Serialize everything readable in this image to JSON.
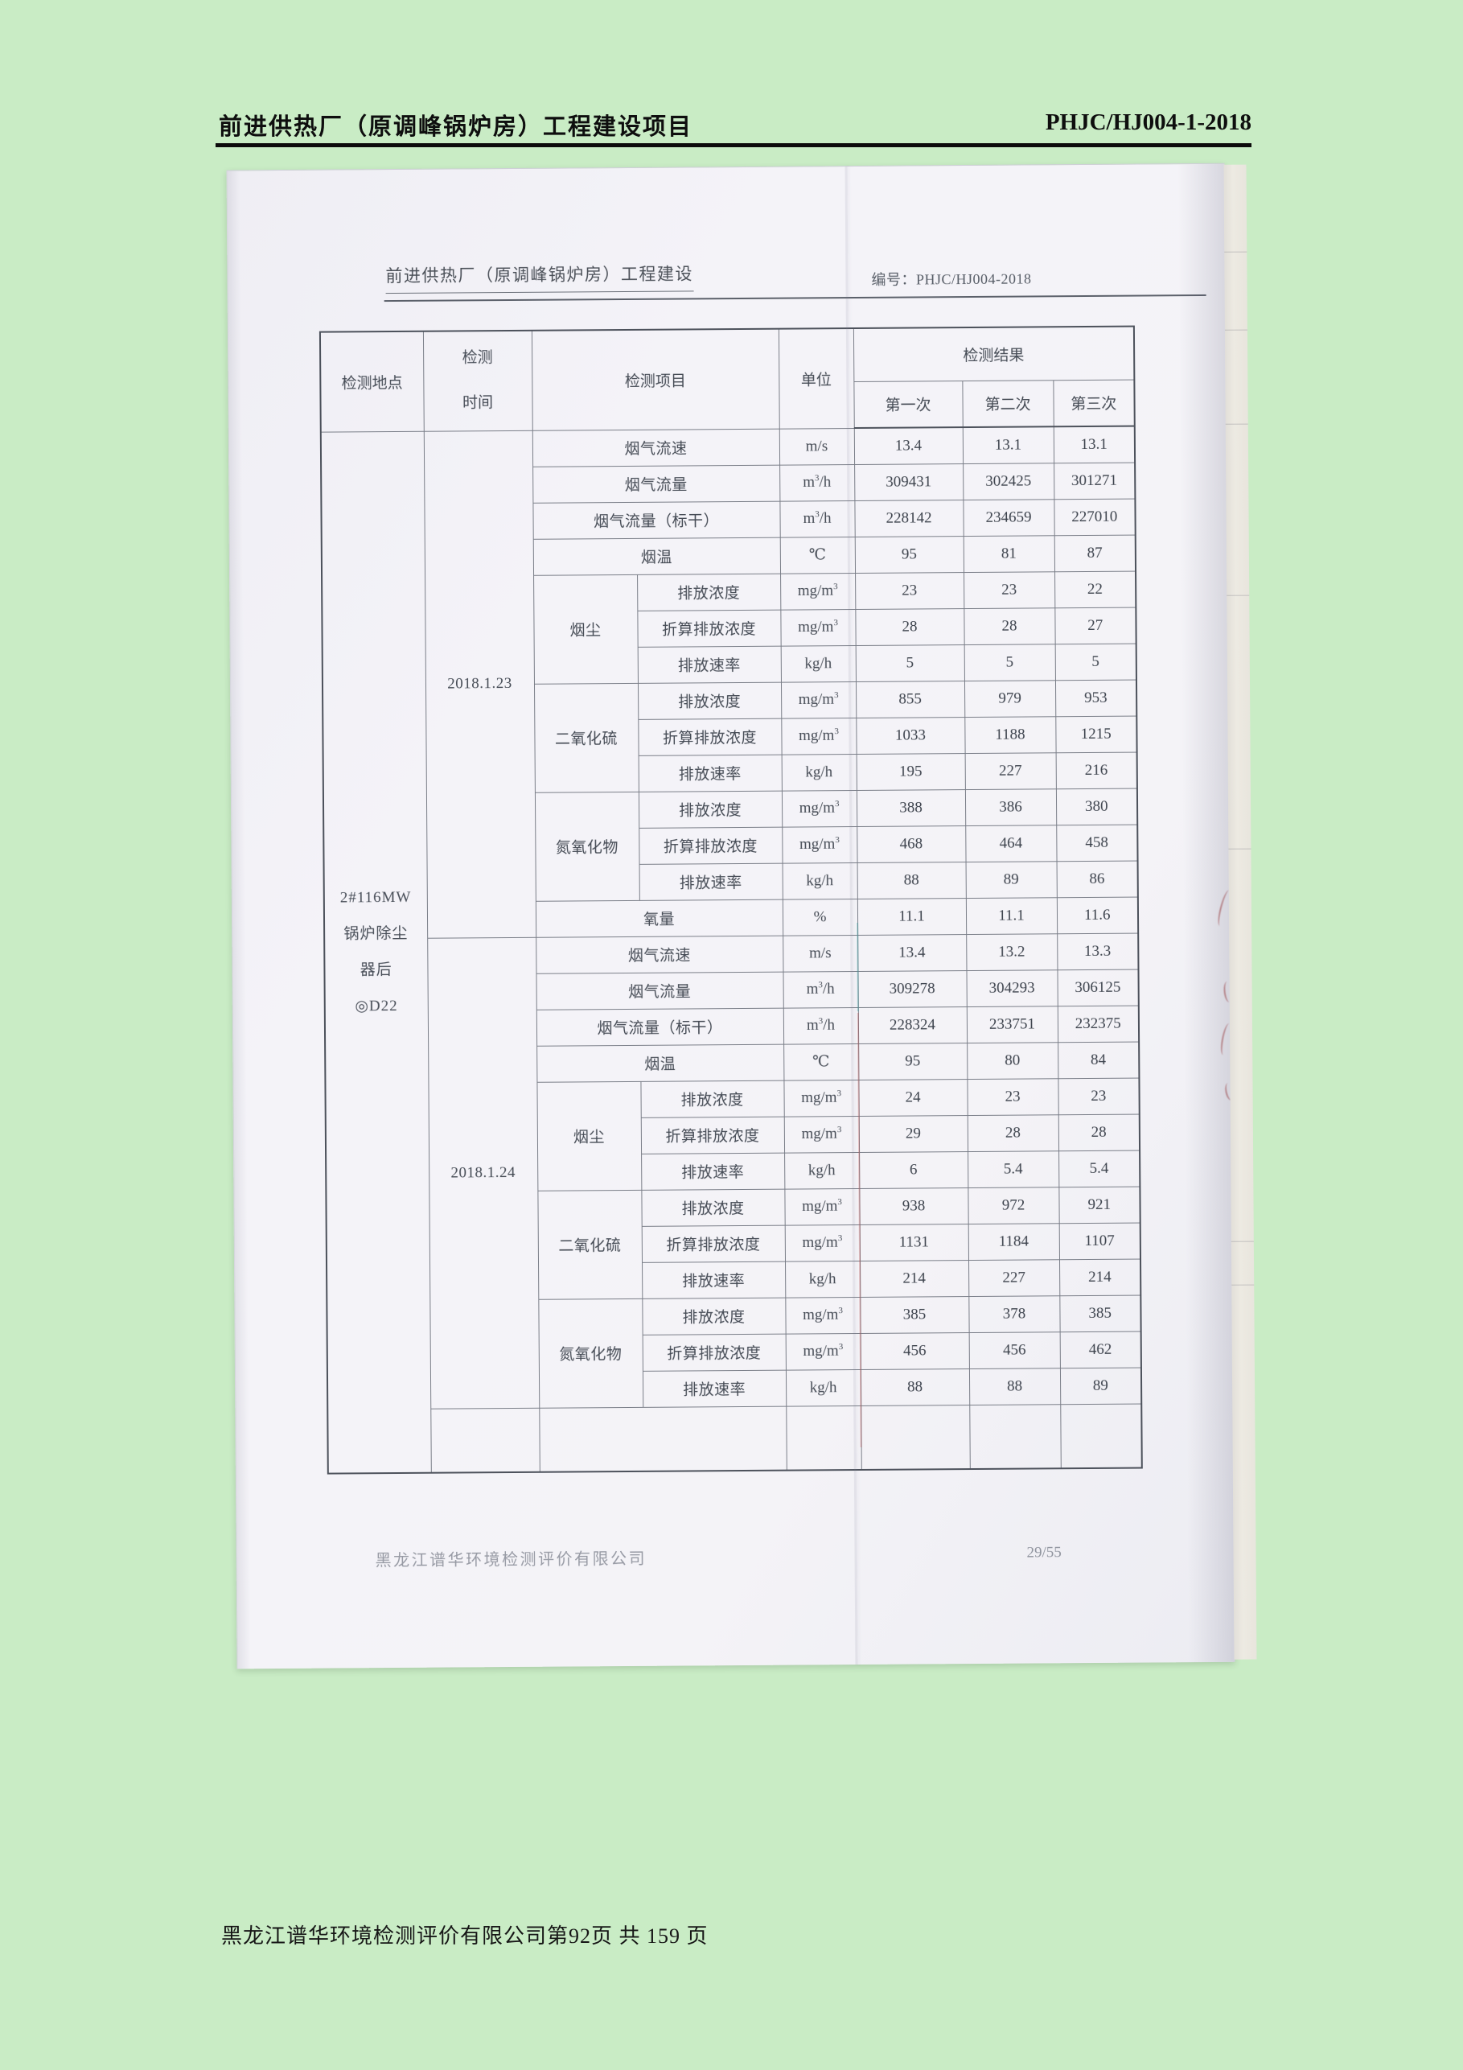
{
  "page_header": {
    "title": "前进供热厂（原调峰锅炉房）工程建设项目",
    "doc_number": "PHJC/HJ004-1-2018"
  },
  "page_footer": {
    "text": "黑龙江谱华环境检测评价有限公司第92页 共 159 页"
  },
  "scan": {
    "header": {
      "title": "前进供热厂（原调峰锅炉房）工程建设",
      "doc_no": "编号：PHJC/HJ004-2018"
    },
    "footer": {
      "company": "黑龙江谱华环境检测评价有限公司",
      "page": "29/55"
    },
    "table": {
      "headers": {
        "location": "检测地点",
        "time_line1": "检测",
        "time_line2": "时间",
        "item": "检测项目",
        "unit": "单位",
        "result": "检测结果",
        "runs": [
          "第一次",
          "第二次",
          "第三次"
        ]
      },
      "location": {
        "lines": [
          "2#116MW",
          "锅炉除尘",
          "器后",
          "◎D22"
        ]
      },
      "sections": [
        {
          "date": "2018.1.23",
          "rows": [
            {
              "item": "烟气流速",
              "unit": "m/s",
              "values": [
                "13.4",
                "13.1",
                "13.1"
              ],
              "wide": true
            },
            {
              "item": "烟气流量",
              "unit": "m³/h",
              "values": [
                "309431",
                "302425",
                "301271"
              ],
              "wide": true
            },
            {
              "item": "烟气流量（标干）",
              "unit": "m³/h",
              "values": [
                "228142",
                "234659",
                "227010"
              ],
              "wide": true
            },
            {
              "item": "烟温",
              "unit": "℃",
              "values": [
                "95",
                "81",
                "87"
              ],
              "wide": true
            },
            {
              "group": "烟尘",
              "groupSpan": 3,
              "item": "排放浓度",
              "unit": "mg/m³",
              "values": [
                "23",
                "23",
                "22"
              ]
            },
            {
              "item": "折算排放浓度",
              "unit": "mg/m³",
              "values": [
                "28",
                "28",
                "27"
              ]
            },
            {
              "item": "排放速率",
              "unit": "kg/h",
              "values": [
                "5",
                "5",
                "5"
              ]
            },
            {
              "group": "二氧化硫",
              "groupSpan": 3,
              "item": "排放浓度",
              "unit": "mg/m³",
              "values": [
                "855",
                "979",
                "953"
              ]
            },
            {
              "item": "折算排放浓度",
              "unit": "mg/m³",
              "values": [
                "1033",
                "1188",
                "1215"
              ]
            },
            {
              "item": "排放速率",
              "unit": "kg/h",
              "values": [
                "195",
                "227",
                "216"
              ]
            },
            {
              "group": "氮氧化物",
              "groupSpan": 3,
              "item": "排放浓度",
              "unit": "mg/m³",
              "values": [
                "388",
                "386",
                "380"
              ]
            },
            {
              "item": "折算排放浓度",
              "unit": "mg/m³",
              "values": [
                "468",
                "464",
                "458"
              ]
            },
            {
              "item": "排放速率",
              "unit": "kg/h",
              "values": [
                "88",
                "89",
                "86"
              ]
            },
            {
              "item": "氧量",
              "unit": "%",
              "values": [
                "11.1",
                "11.1",
                "11.6"
              ],
              "wide": true
            }
          ]
        },
        {
          "date": "2018.1.24",
          "rows": [
            {
              "item": "烟气流速",
              "unit": "m/s",
              "values": [
                "13.4",
                "13.2",
                "13.3"
              ],
              "wide": true
            },
            {
              "item": "烟气流量",
              "unit": "m³/h",
              "values": [
                "309278",
                "304293",
                "306125"
              ],
              "wide": true
            },
            {
              "item": "烟气流量（标干）",
              "unit": "m³/h",
              "values": [
                "228324",
                "233751",
                "232375"
              ],
              "wide": true
            },
            {
              "item": "烟温",
              "unit": "℃",
              "values": [
                "95",
                "80",
                "84"
              ],
              "wide": true
            },
            {
              "group": "烟尘",
              "groupSpan": 3,
              "item": "排放浓度",
              "unit": "mg/m³",
              "values": [
                "24",
                "23",
                "23"
              ]
            },
            {
              "item": "折算排放浓度",
              "unit": "mg/m³",
              "values": [
                "29",
                "28",
                "28"
              ]
            },
            {
              "item": "排放速率",
              "unit": "kg/h",
              "values": [
                "6",
                "5.4",
                "5.4"
              ]
            },
            {
              "group": "二氧化硫",
              "groupSpan": 3,
              "item": "排放浓度",
              "unit": "mg/m³",
              "values": [
                "938",
                "972",
                "921"
              ]
            },
            {
              "item": "折算排放浓度",
              "unit": "mg/m³",
              "values": [
                "1131",
                "1184",
                "1107"
              ]
            },
            {
              "item": "排放速率",
              "unit": "kg/h",
              "values": [
                "214",
                "227",
                "214"
              ]
            },
            {
              "group": "氮氧化物",
              "groupSpan": 3,
              "item": "排放浓度",
              "unit": "mg/m³",
              "values": [
                "385",
                "378",
                "385"
              ]
            },
            {
              "item": "折算排放浓度",
              "unit": "mg/m³",
              "values": [
                "456",
                "456",
                "462"
              ]
            },
            {
              "item": "排放速率",
              "unit": "kg/h",
              "values": [
                "88",
                "88",
                "89"
              ]
            }
          ]
        }
      ]
    }
  },
  "colors": {
    "background_green": "#c9ecc5",
    "paper": "#f3f2f7",
    "annotation_red": "#b05a5a"
  }
}
